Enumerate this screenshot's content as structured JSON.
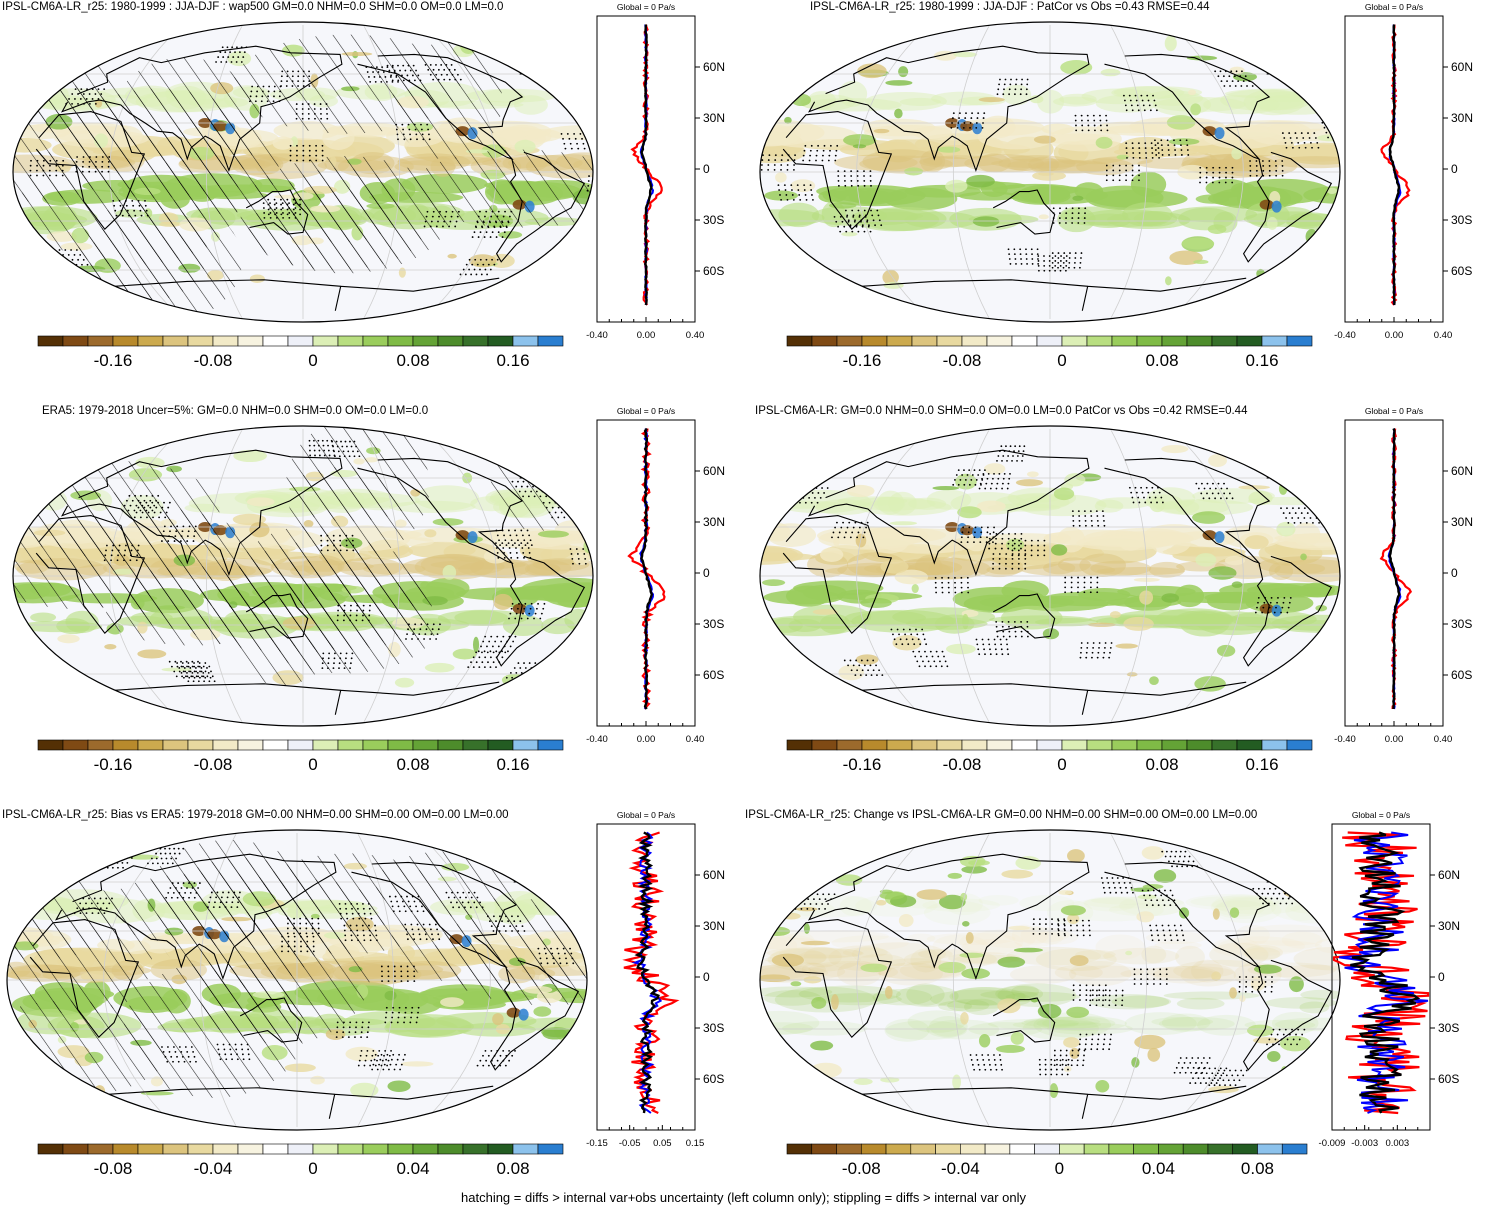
{
  "colors": {
    "scale": [
      "#543005",
      "#7f4a14",
      "#9c6a2c",
      "#b88a2c",
      "#ccaa4e",
      "#dcc47e",
      "#e8d9a0",
      "#f2eac7",
      "#f7f3e0",
      "#ffffff",
      "#eef0f8",
      "#dcefb6",
      "#b8de80",
      "#9acd5c",
      "#7fbb46",
      "#64a336",
      "#4d8c2b",
      "#37712a",
      "#235c22",
      "#8cc2ec",
      "#2a7ed0"
    ],
    "land_outline": "#000000",
    "profile_global": "#000000",
    "profile_land": "#ff0000",
    "profile_ocean": "#0000ff"
  },
  "panels": [
    {
      "title": "IPSL-CM6A-LR_r25: 1980-1999 : JJA-DJF : wap500 GM=0.0 NHM=0.0 SHM=0.0 OM=0.0 LM=0.0",
      "hatched": true,
      "profile": {
        "header": "Global = 0 Pa/s",
        "xticks": [
          "-0.40",
          "0.00",
          "0.40"
        ],
        "scale": 0.4,
        "land_amp": 0.05,
        "ocean_amp": 0.02,
        "noise": 0.15
      },
      "colorbar": {
        "ticks": [
          "-0.16",
          "-0.08",
          "0",
          "0.08",
          "0.16"
        ]
      }
    },
    {
      "title": "IPSL-CM6A-LR_r25: 1980-1999 : JJA-DJF : PatCor vs Obs =0.43 RMSE=0.44",
      "hatched": false,
      "profile": {
        "header": "Global = 0 Pa/s",
        "xticks": [
          "-0.40",
          "0.00",
          "0.40"
        ],
        "scale": 0.4,
        "land_amp": 0.05,
        "ocean_amp": 0.02,
        "noise": 0.12
      },
      "colorbar": {
        "ticks": [
          "-0.16",
          "-0.08",
          "0",
          "0.08",
          "0.16"
        ]
      }
    },
    {
      "title": "ERA5: 1979-2018 Uncer=5%: GM=0.0 NHM=0.0 SHM=0.0 OM=0.0 LM=0.0",
      "hatched": true,
      "profile": {
        "header": "Global = 0 Pa/s",
        "xticks": [
          "-0.40",
          "0.00",
          "0.40"
        ],
        "scale": 0.4,
        "land_amp": 0.06,
        "ocean_amp": 0.02,
        "noise": 0.2
      },
      "colorbar": {
        "ticks": [
          "-0.16",
          "-0.08",
          "0",
          "0.08",
          "0.16"
        ]
      }
    },
    {
      "title": "IPSL-CM6A-LR: GM=0.0 NHM=0.0 SHM=0.0 OM=0.0 LM=0.0 PatCor vs Obs =0.42 RMSE=0.44",
      "hatched": false,
      "profile": {
        "header": "Global = 0 Pa/s",
        "xticks": [
          "-0.40",
          "0.00",
          "0.40"
        ],
        "scale": 0.4,
        "land_amp": 0.05,
        "ocean_amp": 0.02,
        "noise": 0.12
      },
      "colorbar": {
        "ticks": [
          "-0.16",
          "-0.08",
          "0",
          "0.08",
          "0.16"
        ]
      }
    },
    {
      "title": "IPSL-CM6A-LR_r25: Bias vs ERA5: 1979-2018 GM=0.00 NHM=0.00 SHM=0.00 OM=0.00 LM=0.00",
      "hatched": true,
      "profile": {
        "header": "Global = 0 Pa/s",
        "xticks": [
          "-0.15",
          "-0.05",
          "0.05",
          "0.15"
        ],
        "scale": 0.15,
        "land_amp": 0.03,
        "ocean_amp": 0.012,
        "noise": 0.6
      },
      "colorbar": {
        "ticks": [
          "-0.08",
          "-0.04",
          "0",
          "0.04",
          "0.08"
        ]
      }
    },
    {
      "title": "IPSL-CM6A-LR_r25: Change vs IPSL-CM6A-LR GM=0.00 NHM=0.00 SHM=0.00 OM=0.00 LM=0.00",
      "hatched": false,
      "profile": {
        "header": "Global = 0 Pa/s",
        "xticks": [
          "-0.009",
          "-0.003",
          "0.003"
        ],
        "scale": 0.009,
        "land_amp": 0.003,
        "ocean_amp": 0.002,
        "noise": 1.0
      },
      "colorbar": {
        "ticks": [
          "-0.08",
          "-0.04",
          "0",
          "0.04",
          "0.08"
        ]
      }
    }
  ],
  "lat_labels": [
    "60N",
    "30N",
    "0",
    "30S",
    "60S"
  ],
  "footer": "hatching = diffs > internal var+obs uncertainty (left column only); stippling = diffs > internal var only",
  "chart_data": [
    {
      "type": "heatmap",
      "title": "IPSL-CM6A-LR_r25: 1980-1999 : JJA-DJF : wap500 GM=0.0 NHM=0.0 SHM=0.0 OM=0.0 LM=0.0",
      "colorbar_ticks": [
        -0.16,
        -0.08,
        0,
        0.08,
        0.16
      ],
      "profile": {
        "y_ticks": [
          "60N",
          "30N",
          "0",
          "30S",
          "60S"
        ],
        "x_ticks": [
          -0.4,
          0.0,
          0.4
        ],
        "global_mean": 0
      }
    },
    {
      "type": "heatmap",
      "title": "IPSL-CM6A-LR_r25: 1980-1999 : JJA-DJF : PatCor vs Obs =0.43 RMSE=0.44",
      "pattern_correlation": 0.43,
      "rmse": 0.44,
      "colorbar_ticks": [
        -0.16,
        -0.08,
        0,
        0.08,
        0.16
      ],
      "profile": {
        "y_ticks": [
          "60N",
          "30N",
          "0",
          "30S",
          "60S"
        ],
        "x_ticks": [
          -0.4,
          0.0,
          0.4
        ],
        "global_mean": 0
      }
    },
    {
      "type": "heatmap",
      "title": "ERA5: 1979-2018 Uncer=5%: GM=0.0 NHM=0.0 SHM=0.0 OM=0.0 LM=0.0",
      "colorbar_ticks": [
        -0.16,
        -0.08,
        0,
        0.08,
        0.16
      ],
      "profile": {
        "y_ticks": [
          "60N",
          "30N",
          "0",
          "30S",
          "60S"
        ],
        "x_ticks": [
          -0.4,
          0.0,
          0.4
        ],
        "global_mean": 0
      }
    },
    {
      "type": "heatmap",
      "title": "IPSL-CM6A-LR: GM=0.0 NHM=0.0 SHM=0.0 OM=0.0 LM=0.0 PatCor vs Obs =0.42 RMSE=0.44",
      "pattern_correlation": 0.42,
      "rmse": 0.44,
      "colorbar_ticks": [
        -0.16,
        -0.08,
        0,
        0.08,
        0.16
      ],
      "profile": {
        "y_ticks": [
          "60N",
          "30N",
          "0",
          "30S",
          "60S"
        ],
        "x_ticks": [
          -0.4,
          0.0,
          0.4
        ],
        "global_mean": 0
      }
    },
    {
      "type": "heatmap",
      "title": "IPSL-CM6A-LR_r25: Bias vs ERA5: 1979-2018 GM=0.00 NHM=0.00 SHM=0.00 OM=0.00 LM=0.00",
      "colorbar_ticks": [
        -0.08,
        -0.04,
        0,
        0.04,
        0.08
      ],
      "profile": {
        "y_ticks": [
          "60N",
          "30N",
          "0",
          "30S",
          "60S"
        ],
        "x_ticks": [
          -0.15,
          -0.05,
          0.05,
          0.15
        ],
        "global_mean": 0
      }
    },
    {
      "type": "heatmap",
      "title": "IPSL-CM6A-LR_r25: Change vs IPSL-CM6A-LR GM=0.00 NHM=0.00 SHM=0.00 OM=0.00 LM=0.00",
      "colorbar_ticks": [
        -0.08,
        -0.04,
        0,
        0.04,
        0.08
      ],
      "profile": {
        "y_ticks": [
          "60N",
          "30N",
          "0",
          "30S",
          "60S"
        ],
        "x_ticks": [
          -0.009,
          -0.003,
          0.003
        ],
        "global_mean": 0
      }
    }
  ]
}
